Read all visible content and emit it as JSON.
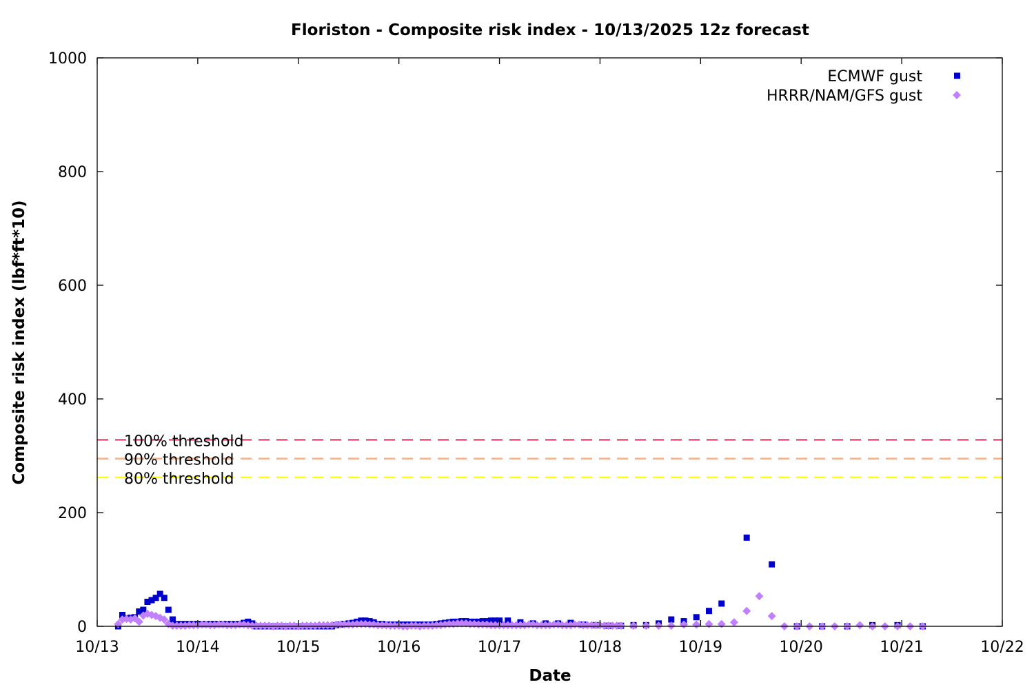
{
  "chart_data": {
    "type": "scatter",
    "title": "Floriston - Composite risk index - 10/13/2025 12z forecast",
    "xlabel": "Date",
    "ylabel": "Composite risk index (lbf*ft*10)",
    "xlim": [
      "10/13",
      "10/22"
    ],
    "ylim": [
      0,
      1000
    ],
    "x_ticks": [
      "10/13",
      "10/14",
      "10/15",
      "10/16",
      "10/17",
      "10/18",
      "10/19",
      "10/20",
      "10/21",
      "10/22"
    ],
    "y_ticks": [
      0,
      200,
      400,
      600,
      800,
      1000
    ],
    "grid": false,
    "legend_position": "top-right",
    "thresholds": [
      {
        "label": "100% threshold",
        "value": 328,
        "color": "#e8507c"
      },
      {
        "label": "90% threshold",
        "value": 295,
        "color": "#f5b08a"
      },
      {
        "label": "80% threshold",
        "value": 262,
        "color": "#ffff00"
      }
    ],
    "x": [
      "10/13 05:00",
      "10/13 06:00",
      "10/13 07:00",
      "10/13 08:00",
      "10/13 09:00",
      "10/13 10:00",
      "10/13 11:00",
      "10/13 12:00",
      "10/13 13:00",
      "10/13 14:00",
      "10/13 15:00",
      "10/13 16:00",
      "10/13 17:00",
      "10/13 18:00",
      "10/13 19:00",
      "10/13 20:00",
      "10/13 21:00",
      "10/13 22:00",
      "10/13 23:00",
      "10/14 00:00",
      "10/14 01:00",
      "10/14 02:00",
      "10/14 03:00",
      "10/14 04:00",
      "10/14 05:00",
      "10/14 06:00",
      "10/14 07:00",
      "10/14 08:00",
      "10/14 09:00",
      "10/14 10:00",
      "10/14 11:00",
      "10/14 12:00",
      "10/14 13:00",
      "10/14 14:00",
      "10/14 15:00",
      "10/14 16:00",
      "10/14 17:00",
      "10/14 18:00",
      "10/14 19:00",
      "10/14 20:00",
      "10/14 21:00",
      "10/14 22:00",
      "10/14 23:00",
      "10/15 00:00",
      "10/15 01:00",
      "10/15 02:00",
      "10/15 03:00",
      "10/15 04:00",
      "10/15 05:00",
      "10/15 06:00",
      "10/15 07:00",
      "10/15 08:00",
      "10/15 09:00",
      "10/15 10:00",
      "10/15 11:00",
      "10/15 12:00",
      "10/15 13:00",
      "10/15 14:00",
      "10/15 15:00",
      "10/15 16:00",
      "10/15 17:00",
      "10/15 18:00",
      "10/15 19:00",
      "10/15 20:00",
      "10/15 21:00",
      "10/15 22:00",
      "10/15 23:00",
      "10/16 00:00",
      "10/16 01:00",
      "10/16 02:00",
      "10/16 03:00",
      "10/16 04:00",
      "10/16 05:00",
      "10/16 06:00",
      "10/16 07:00",
      "10/16 08:00",
      "10/16 09:00",
      "10/16 10:00",
      "10/16 11:00",
      "10/16 12:00",
      "10/16 13:00",
      "10/16 14:00",
      "10/16 15:00",
      "10/16 16:00",
      "10/16 17:00",
      "10/16 18:00",
      "10/16 19:00",
      "10/16 20:00",
      "10/16 21:00",
      "10/16 22:00",
      "10/16 23:00",
      "10/17 00:00",
      "10/17 01:00",
      "10/17 02:00",
      "10/17 03:00",
      "10/17 04:00",
      "10/17 05:00",
      "10/17 06:00",
      "10/17 07:00",
      "10/17 08:00",
      "10/17 09:00",
      "10/17 10:00",
      "10/17 11:00",
      "10/17 12:00",
      "10/17 13:00",
      "10/17 14:00",
      "10/17 15:00",
      "10/17 16:00",
      "10/17 17:00",
      "10/17 18:00",
      "10/17 19:00",
      "10/17 20:00",
      "10/17 21:00",
      "10/17 22:00",
      "10/17 23:00",
      "10/18 00:00",
      "10/18 01:00",
      "10/18 02:00",
      "10/18 03:00",
      "10/18 04:00",
      "10/18 05:00",
      "10/18 08:00",
      "10/18 11:00",
      "10/18 14:00",
      "10/18 17:00",
      "10/18 20:00",
      "10/18 23:00",
      "10/19 02:00",
      "10/19 05:00",
      "10/19 08:00",
      "10/19 11:00",
      "10/19 14:00",
      "10/19 17:00",
      "10/19 20:00",
      "10/19 23:00",
      "10/20 02:00",
      "10/20 05:00",
      "10/20 08:00",
      "10/20 11:00",
      "10/20 14:00",
      "10/20 17:00",
      "10/20 20:00",
      "10/20 23:00",
      "10/21 02:00",
      "10/21 05:00"
    ],
    "series": [
      {
        "name": "ECMWF gust",
        "color": "#0000cc",
        "marker": "square",
        "values": [
          0,
          20,
          14,
          15,
          16,
          26,
          29,
          43,
          46,
          50,
          57,
          50,
          29,
          12,
          4,
          4,
          4,
          4,
          4,
          4,
          4,
          4,
          4,
          4,
          4,
          4,
          4,
          4,
          4,
          4,
          6,
          8,
          5,
          0,
          0,
          0,
          0,
          0,
          0,
          0,
          0,
          0,
          0,
          0,
          0,
          0,
          0,
          0,
          0,
          0,
          0,
          0,
          2,
          3,
          4,
          5,
          6,
          8,
          10,
          10,
          9,
          7,
          4,
          4,
          3,
          3,
          3,
          3,
          3,
          3,
          3,
          3,
          3,
          3,
          3,
          3,
          4,
          5,
          6,
          7,
          8,
          8,
          9,
          9,
          8,
          8,
          8,
          9,
          9,
          10,
          10,
          10,
          null,
          10,
          null,
          null,
          7,
          null,
          null,
          5,
          null,
          null,
          5,
          null,
          null,
          5,
          null,
          null,
          6,
          null,
          null,
          3,
          null,
          null,
          2,
          null,
          null,
          1,
          null,
          null,
          1,
          2,
          2,
          5,
          12,
          9,
          16,
          27,
          40,
          null,
          156,
          null,
          109,
          null,
          0,
          null,
          0,
          null,
          0,
          null,
          2,
          null,
          2,
          null,
          0
        ]
      },
      {
        "name": "HRRR/NAM/GFS gust",
        "color": "#c080ff",
        "marker": "diamond",
        "values": [
          4,
          12,
          13,
          12,
          14,
          8,
          19,
          22,
          20,
          18,
          15,
          12,
          4,
          1,
          1,
          1,
          1,
          2,
          2,
          2,
          3,
          3,
          2,
          2,
          3,
          3,
          2,
          2,
          2,
          3,
          3,
          2,
          1,
          1,
          1,
          1,
          1,
          0,
          1,
          1,
          0,
          1,
          1,
          0,
          1,
          1,
          1,
          1,
          2,
          2,
          2,
          2,
          3,
          3,
          3,
          3,
          3,
          4,
          4,
          4,
          3,
          3,
          2,
          2,
          2,
          1,
          1,
          1,
          0,
          0,
          1,
          1,
          0,
          1,
          1,
          1,
          2,
          2,
          3,
          4,
          4,
          5,
          5,
          5,
          4,
          4,
          3,
          3,
          3,
          2,
          2,
          2,
          2,
          2,
          2,
          2,
          2,
          2,
          3,
          3,
          2,
          2,
          2,
          2,
          3,
          3,
          2,
          2,
          2,
          3,
          3,
          2,
          2,
          2,
          2,
          2,
          1,
          1,
          1,
          1,
          1,
          1,
          1,
          1,
          1,
          3,
          3,
          4,
          4,
          7,
          27,
          53,
          18,
          0,
          0,
          0,
          0,
          0,
          0,
          2,
          0,
          0,
          0,
          0,
          0
        ]
      }
    ]
  }
}
